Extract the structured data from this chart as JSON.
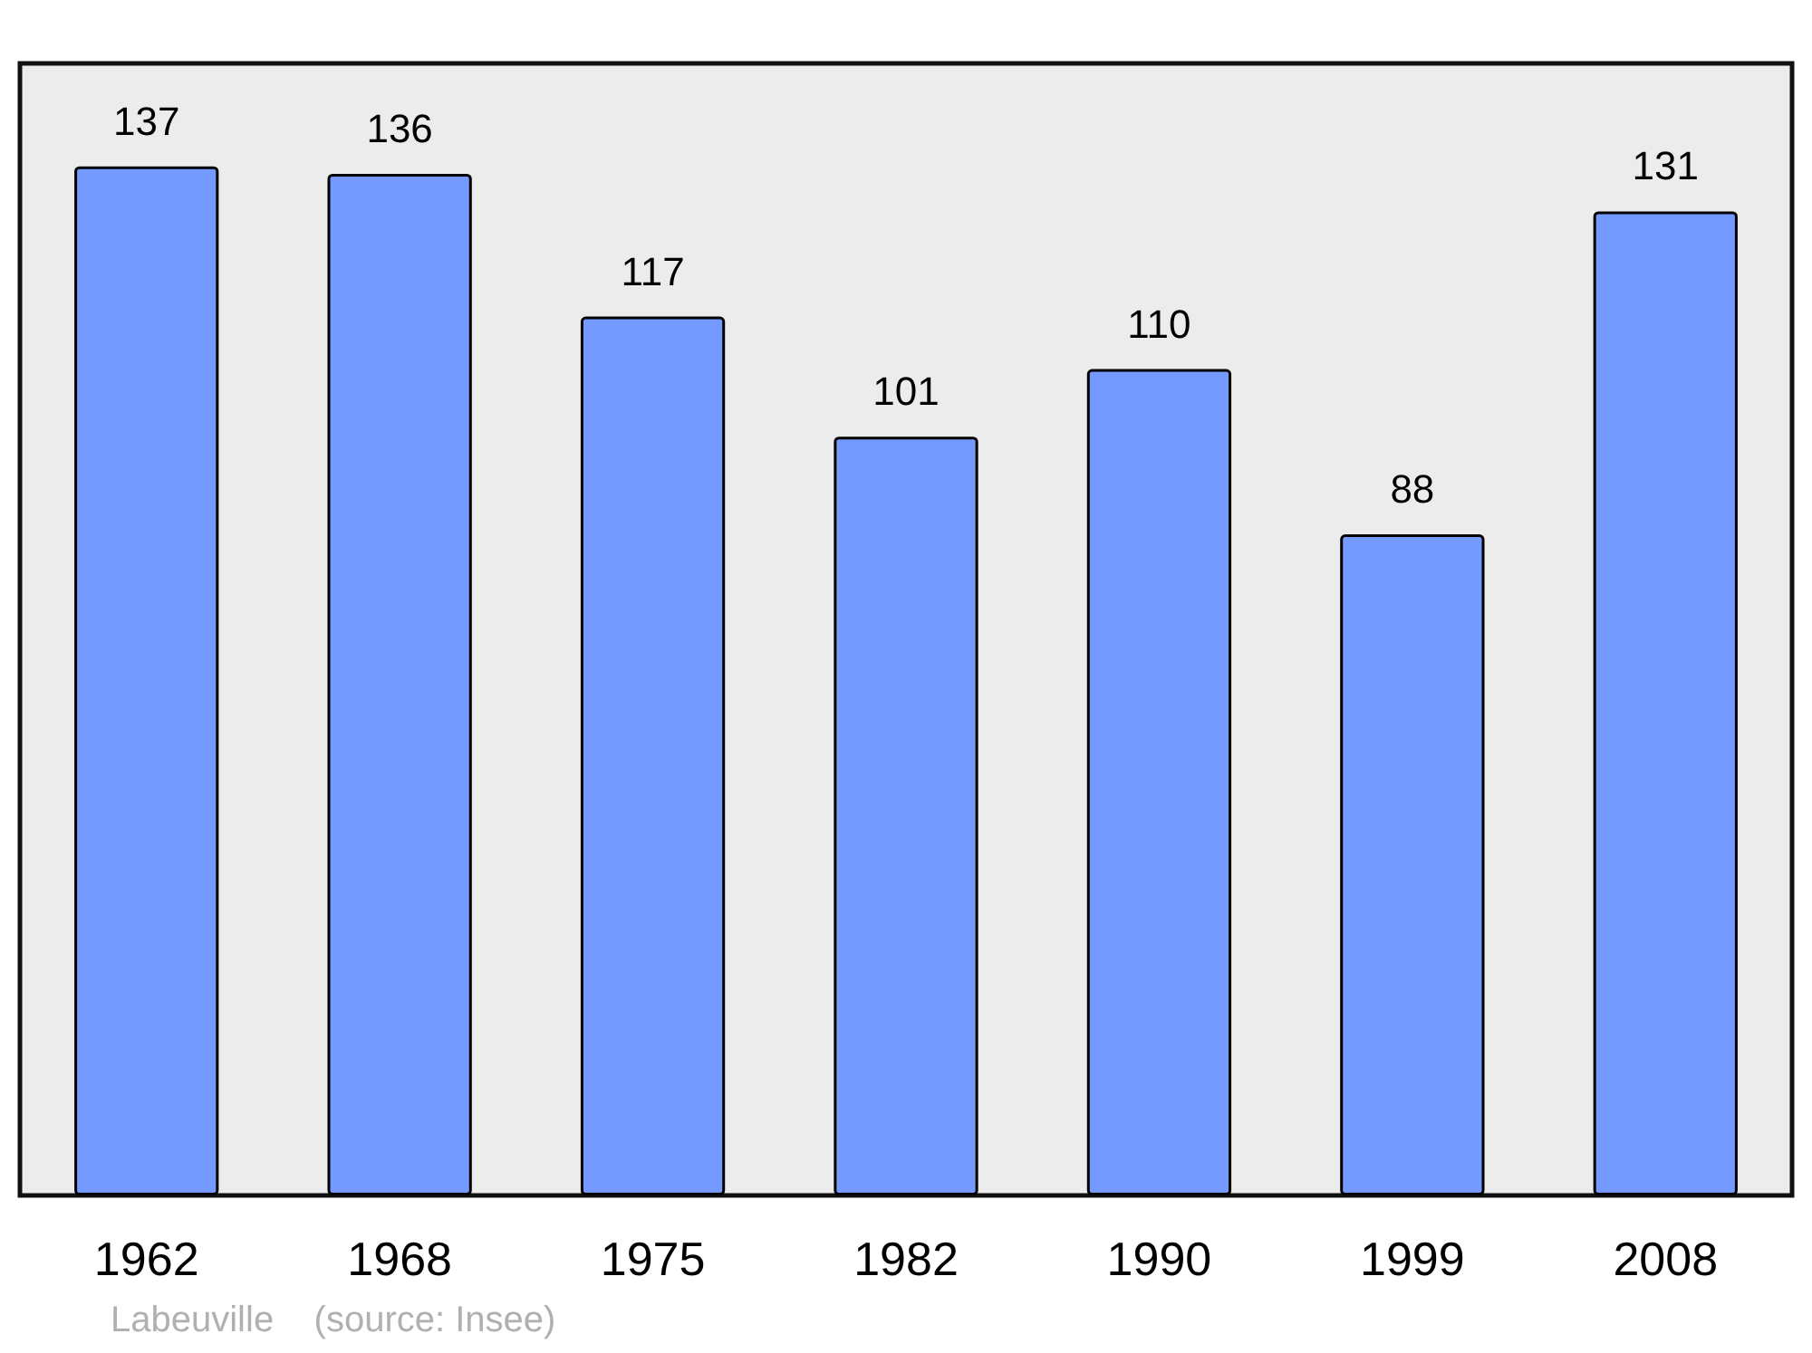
{
  "chart_data": {
    "type": "bar",
    "categories": [
      "1962",
      "1968",
      "1975",
      "1982",
      "1990",
      "1999",
      "2008"
    ],
    "values": [
      137,
      136,
      117,
      101,
      110,
      88,
      131
    ],
    "color": "#7499ff",
    "data_labels": true,
    "annotations": [
      "Labeuville    (source: Insee)"
    ]
  }
}
